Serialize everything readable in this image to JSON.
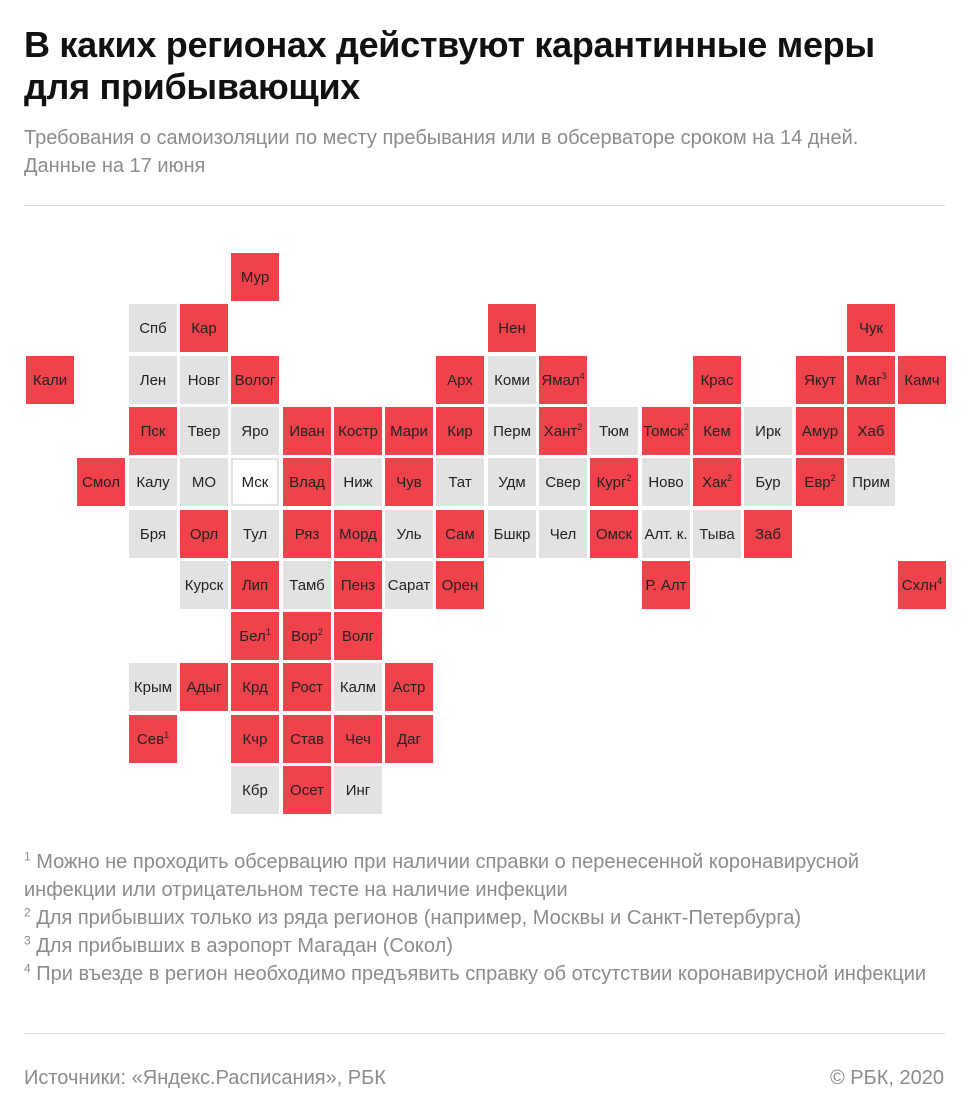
{
  "title": "В каких регионах действуют карантинные меры для прибывающих",
  "subtitle": "Требования о самоизоляции по месту пребывания или в обсерваторе сроком на 14 дней. Данные на 17 июня",
  "colors": {
    "quarantine": "#f0424a",
    "no_quarantine": "#e2e2e2",
    "moscow": "#ffffff"
  },
  "regions": [
    {
      "label": "Мур",
      "status": "red",
      "col": 4,
      "row": 0
    },
    {
      "label": "Спб",
      "status": "grey",
      "col": 2,
      "row": 1
    },
    {
      "label": "Кар",
      "status": "red",
      "col": 3,
      "row": 1
    },
    {
      "label": "Нен",
      "status": "red",
      "col": 9,
      "row": 1
    },
    {
      "label": "Чук",
      "status": "red",
      "col": 16,
      "row": 1
    },
    {
      "label": "Кали",
      "status": "red",
      "col": 0,
      "row": 2
    },
    {
      "label": "Лен",
      "status": "grey",
      "col": 2,
      "row": 2
    },
    {
      "label": "Новг",
      "status": "grey",
      "col": 3,
      "row": 2
    },
    {
      "label": "Волог",
      "status": "red",
      "col": 4,
      "row": 2
    },
    {
      "label": "Арх",
      "status": "red",
      "col": 8,
      "row": 2
    },
    {
      "label": "Коми",
      "status": "grey",
      "col": 9,
      "row": 2
    },
    {
      "label": "Ямал",
      "note": "4",
      "status": "red",
      "col": 10,
      "row": 2
    },
    {
      "label": "Крас",
      "status": "red",
      "col": 13,
      "row": 2
    },
    {
      "label": "Якут",
      "status": "red",
      "col": 15,
      "row": 2
    },
    {
      "label": "Маг",
      "note": "3",
      "status": "red",
      "col": 16,
      "row": 2
    },
    {
      "label": "Камч",
      "status": "red",
      "col": 17,
      "row": 2
    },
    {
      "label": "Пск",
      "status": "red",
      "col": 2,
      "row": 3
    },
    {
      "label": "Твер",
      "status": "grey",
      "col": 3,
      "row": 3
    },
    {
      "label": "Яро",
      "status": "grey",
      "col": 4,
      "row": 3
    },
    {
      "label": "Иван",
      "status": "red",
      "col": 5,
      "row": 3
    },
    {
      "label": "Костр",
      "status": "red",
      "col": 6,
      "row": 3
    },
    {
      "label": "Мари",
      "status": "red",
      "col": 7,
      "row": 3
    },
    {
      "label": "Кир",
      "status": "red",
      "col": 8,
      "row": 3
    },
    {
      "label": "Перм",
      "status": "grey",
      "col": 9,
      "row": 3
    },
    {
      "label": "Хант",
      "note": "2",
      "status": "red",
      "col": 10,
      "row": 3
    },
    {
      "label": "Тюм",
      "status": "grey",
      "col": 11,
      "row": 3
    },
    {
      "label": "Томск",
      "note": "2",
      "status": "red",
      "col": 12,
      "row": 3
    },
    {
      "label": "Кем",
      "status": "red",
      "col": 13,
      "row": 3
    },
    {
      "label": "Ирк",
      "status": "grey",
      "col": 14,
      "row": 3
    },
    {
      "label": "Амур",
      "status": "red",
      "col": 15,
      "row": 3
    },
    {
      "label": "Хаб",
      "status": "red",
      "col": 16,
      "row": 3
    },
    {
      "label": "Смол",
      "status": "red",
      "col": 1,
      "row": 4
    },
    {
      "label": "Калу",
      "status": "grey",
      "col": 2,
      "row": 4
    },
    {
      "label": "МО",
      "status": "grey",
      "col": 3,
      "row": 4
    },
    {
      "label": "Мск",
      "status": "white",
      "col": 4,
      "row": 4
    },
    {
      "label": "Влад",
      "status": "red",
      "col": 5,
      "row": 4
    },
    {
      "label": "Ниж",
      "status": "grey",
      "col": 6,
      "row": 4
    },
    {
      "label": "Чув",
      "status": "red",
      "col": 7,
      "row": 4
    },
    {
      "label": "Тат",
      "status": "grey",
      "col": 8,
      "row": 4
    },
    {
      "label": "Удм",
      "status": "grey",
      "col": 9,
      "row": 4
    },
    {
      "label": "Свер",
      "status": "grey",
      "col": 10,
      "row": 4
    },
    {
      "label": "Кург",
      "note": "2",
      "status": "red",
      "col": 11,
      "row": 4
    },
    {
      "label": "Ново",
      "status": "grey",
      "col": 12,
      "row": 4
    },
    {
      "label": "Хак",
      "note": "2",
      "status": "red",
      "col": 13,
      "row": 4
    },
    {
      "label": "Бур",
      "status": "grey",
      "col": 14,
      "row": 4
    },
    {
      "label": "Евр",
      "note": "2",
      "status": "red",
      "col": 15,
      "row": 4
    },
    {
      "label": "Прим",
      "status": "grey",
      "col": 16,
      "row": 4
    },
    {
      "label": "Бря",
      "status": "grey",
      "col": 2,
      "row": 5
    },
    {
      "label": "Орл",
      "status": "red",
      "col": 3,
      "row": 5
    },
    {
      "label": "Тул",
      "status": "grey",
      "col": 4,
      "row": 5
    },
    {
      "label": "Ряз",
      "status": "red",
      "col": 5,
      "row": 5
    },
    {
      "label": "Морд",
      "status": "red",
      "col": 6,
      "row": 5
    },
    {
      "label": "Уль",
      "status": "grey",
      "col": 7,
      "row": 5
    },
    {
      "label": "Сам",
      "status": "red",
      "col": 8,
      "row": 5
    },
    {
      "label": "Бшкр",
      "status": "grey",
      "col": 9,
      "row": 5
    },
    {
      "label": "Чел",
      "status": "grey",
      "col": 10,
      "row": 5
    },
    {
      "label": "Омск",
      "status": "red",
      "col": 11,
      "row": 5
    },
    {
      "label": "Алт. к.",
      "status": "grey",
      "col": 12,
      "row": 5
    },
    {
      "label": "Тыва",
      "status": "grey",
      "col": 13,
      "row": 5
    },
    {
      "label": "Заб",
      "status": "red",
      "col": 14,
      "row": 5
    },
    {
      "label": "Курск",
      "status": "grey",
      "col": 3,
      "row": 6
    },
    {
      "label": "Лип",
      "status": "red",
      "col": 4,
      "row": 6
    },
    {
      "label": "Тамб",
      "status": "grey",
      "col": 5,
      "row": 6
    },
    {
      "label": "Пенз",
      "status": "red",
      "col": 6,
      "row": 6
    },
    {
      "label": "Сарат",
      "status": "grey",
      "col": 7,
      "row": 6
    },
    {
      "label": "Орен",
      "status": "red",
      "col": 8,
      "row": 6
    },
    {
      "label": "Р. Алт",
      "status": "red",
      "col": 12,
      "row": 6
    },
    {
      "label": "Схлн",
      "note": "4",
      "status": "red",
      "col": 17,
      "row": 6
    },
    {
      "label": "Бел",
      "note": "1",
      "status": "red",
      "col": 4,
      "row": 7
    },
    {
      "label": "Вор",
      "note": "2",
      "status": "red",
      "col": 5,
      "row": 7
    },
    {
      "label": "Волг",
      "status": "red",
      "col": 6,
      "row": 7
    },
    {
      "label": "Крым",
      "status": "grey",
      "col": 2,
      "row": 8
    },
    {
      "label": "Адыг",
      "status": "red",
      "col": 3,
      "row": 8
    },
    {
      "label": "Крд",
      "status": "red",
      "col": 4,
      "row": 8
    },
    {
      "label": "Рост",
      "status": "red",
      "col": 5,
      "row": 8
    },
    {
      "label": "Калм",
      "status": "grey",
      "col": 6,
      "row": 8
    },
    {
      "label": "Астр",
      "status": "red",
      "col": 7,
      "row": 8
    },
    {
      "label": "Сев",
      "note": "1",
      "status": "red",
      "col": 2,
      "row": 9
    },
    {
      "label": "Кчр",
      "status": "red",
      "col": 4,
      "row": 9
    },
    {
      "label": "Став",
      "status": "red",
      "col": 5,
      "row": 9
    },
    {
      "label": "Чеч",
      "status": "red",
      "col": 6,
      "row": 9
    },
    {
      "label": "Даг",
      "status": "red",
      "col": 7,
      "row": 9
    },
    {
      "label": "Кбр",
      "status": "grey",
      "col": 4,
      "row": 10
    },
    {
      "label": "Осет",
      "status": "red",
      "col": 5,
      "row": 10
    },
    {
      "label": "Инг",
      "status": "grey",
      "col": 6,
      "row": 10
    }
  ],
  "notes": [
    {
      "num": "1",
      "text": "Можно не проходить обсервацию при наличии справки о перенесенной коронавирусной инфекции или отрицательном тесте на наличие инфекции"
    },
    {
      "num": "2",
      "text": "Для прибывших только из ряда регионов (например, Москвы и Санкт-Петербурга)"
    },
    {
      "num": "3",
      "text": "Для прибывших в аэропорт Магадан (Сокол)"
    },
    {
      "num": "4",
      "text": "При въезде в регион необходимо предъявить справку об отсутствии коронавирусной инфекции"
    }
  ],
  "footer": {
    "sources": "Источники: «Яндекс.Расписания», РБК",
    "copyright": "© РБК, 2020"
  }
}
